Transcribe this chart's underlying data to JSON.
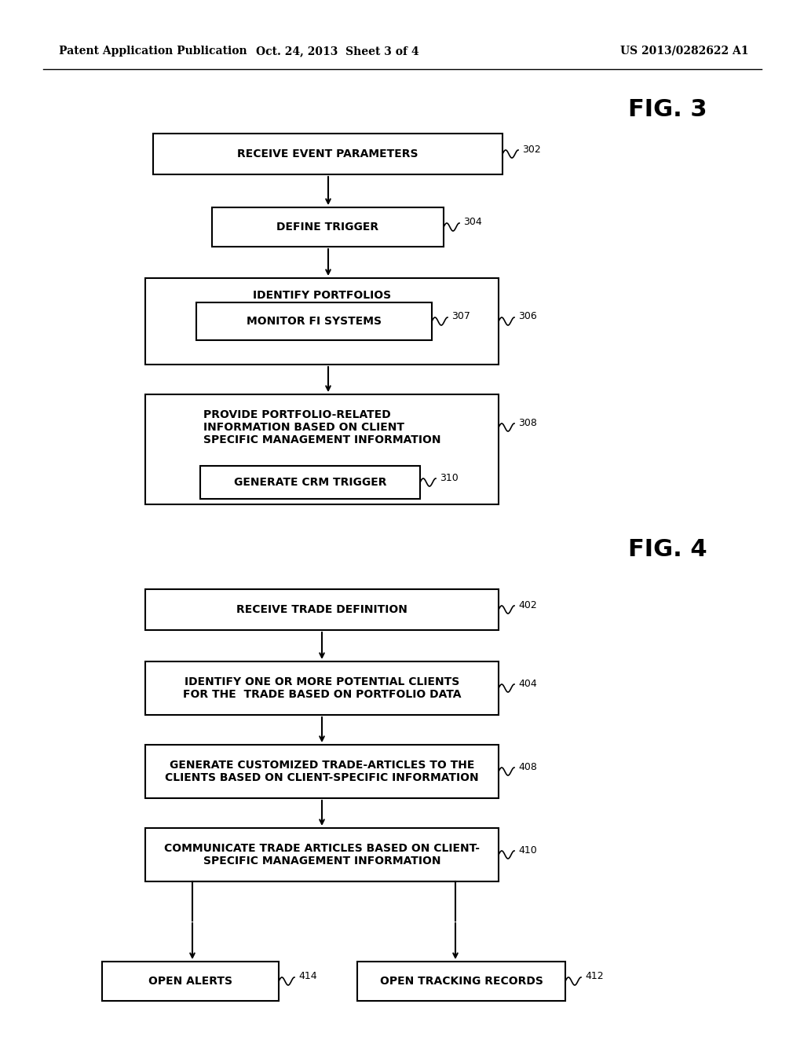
{
  "background_color": "#ffffff",
  "header_left": "Patent Application Publication",
  "header_center": "Oct. 24, 2013  Sheet 3 of 4",
  "header_right": "US 2013/0282622 A1",
  "fig3_label": "FIG. 3",
  "fig4_label": "FIG. 4"
}
